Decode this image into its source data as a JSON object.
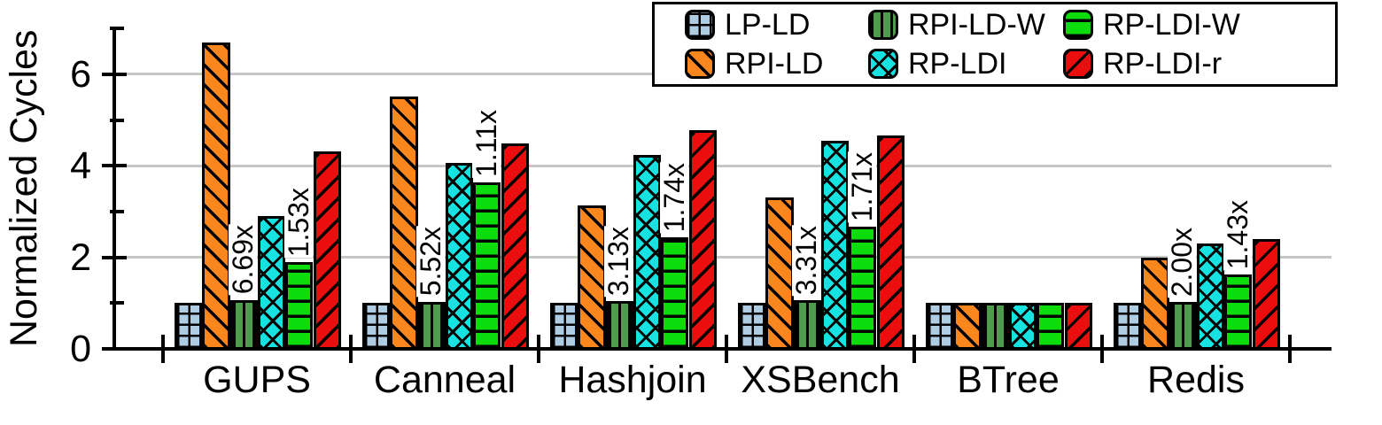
{
  "chart_data": {
    "type": "bar",
    "title": "",
    "ylabel": "Normalized Cycles",
    "xlabel": "",
    "categories": [
      "GUPS",
      "Canneal",
      "Hashjoin",
      "XSBench",
      "BTree",
      "Redis"
    ],
    "series": [
      {
        "name": "LP-LD",
        "color": "#AECDE3",
        "pattern": "grid",
        "values": [
          1.0,
          1.0,
          1.0,
          1.0,
          1.0,
          1.0
        ]
      },
      {
        "name": "RPI-LD",
        "color": "#F9871E",
        "pattern": "diag-back",
        "values": [
          6.69,
          5.52,
          3.13,
          3.31,
          1.0,
          2.0
        ]
      },
      {
        "name": "RPI-LD-W",
        "color": "#4E9D4E",
        "pattern": "vertical",
        "values": [
          1.07,
          1.03,
          1.04,
          1.06,
          1.0,
          1.02
        ]
      },
      {
        "name": "RP-LDI",
        "color": "#16E2E2",
        "pattern": "cross",
        "values": [
          2.9,
          4.06,
          4.23,
          4.55,
          1.0,
          2.31
        ]
      },
      {
        "name": "RP-LDI-W",
        "color": "#0CDC0C",
        "pattern": "horizontal",
        "values": [
          1.9,
          3.64,
          2.43,
          2.66,
          1.0,
          1.62
        ]
      },
      {
        "name": "RP-LDI-r",
        "color": "#EB0E0E",
        "pattern": "diag-fwd",
        "values": [
          4.31,
          4.49,
          4.78,
          4.66,
          1.0,
          2.4
        ]
      }
    ],
    "annotations": [
      {
        "category_index": 0,
        "series_index": 2,
        "text": "6.69x"
      },
      {
        "category_index": 0,
        "series_index": 4,
        "text": "1.53x"
      },
      {
        "category_index": 1,
        "series_index": 2,
        "text": "5.52x"
      },
      {
        "category_index": 1,
        "series_index": 4,
        "text": "1.11x"
      },
      {
        "category_index": 2,
        "series_index": 2,
        "text": "3.13x"
      },
      {
        "category_index": 2,
        "series_index": 4,
        "text": "1.74x"
      },
      {
        "category_index": 3,
        "series_index": 2,
        "text": "3.31x"
      },
      {
        "category_index": 3,
        "series_index": 4,
        "text": "1.71x"
      },
      {
        "category_index": 5,
        "series_index": 2,
        "text": "2.00x"
      },
      {
        "category_index": 5,
        "series_index": 4,
        "text": "1.43x"
      }
    ],
    "y_ticks_major": [
      0,
      2,
      4,
      6
    ],
    "y_ticks_minor": [
      1,
      3,
      5,
      7
    ],
    "ylim": [
      0,
      7
    ],
    "grid": true,
    "grid_color": "#c6c6c6",
    "legend_position": "top-right",
    "legend_rows": 2,
    "legend_column_order": [
      [
        0,
        1
      ],
      [
        2,
        3
      ],
      [
        4,
        5
      ]
    ]
  }
}
